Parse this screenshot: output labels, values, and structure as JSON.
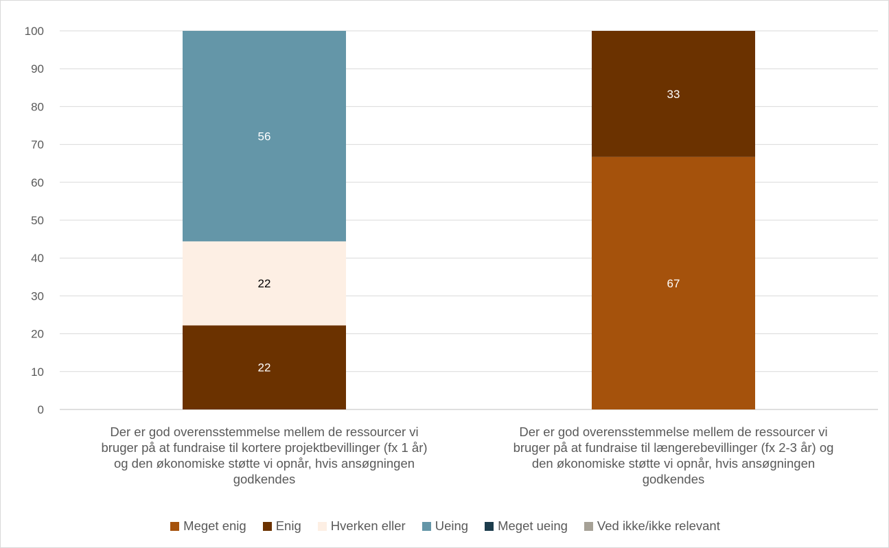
{
  "chart_data": {
    "type": "bar",
    "stacked": true,
    "categories": [
      "Der er god overensstemmelse mellem de ressourcer vi bruger på at fundraise til kortere projektbevillinger (fx 1 år) og den økonomiske støtte vi opnår, hvis ansøgningen godkendes",
      "Der er god overensstemmelse mellem de ressourcer vi bruger på at fundraise til længerebevillinger (fx 2-3 år) og den økonomiske støtte vi opnår, hvis ansøgningen godkendes"
    ],
    "category_lines": [
      [
        "Der er god overensstemmelse mellem de ressourcer vi",
        "bruger på at fundraise til kortere projektbevillinger (fx 1 år)",
        "og den økonomiske støtte vi opnår, hvis ansøgningen",
        "godkendes"
      ],
      [
        "Der er god overensstemmelse mellem de ressourcer vi",
        "bruger på at fundraise til længerebevillinger (fx 2-3 år) og",
        "den økonomiske støtte vi opnår, hvis ansøgningen",
        "godkendes"
      ]
    ],
    "series": [
      {
        "name": "Meget enig",
        "color": "#a5520c",
        "label_color": "#ffffff",
        "values": [
          0,
          66.7
        ],
        "labels": [
          "",
          "67"
        ]
      },
      {
        "name": "Enig",
        "color": "#6b3200",
        "label_color": "#ffffff",
        "values": [
          22.2,
          33.3
        ],
        "labels": [
          "22",
          "33"
        ]
      },
      {
        "name": "Hverken eller",
        "color": "#fdefe4",
        "label_color": "#000000",
        "values": [
          22.2,
          0
        ],
        "labels": [
          "22",
          ""
        ]
      },
      {
        "name": "Ueing",
        "color": "#6496a8",
        "label_color": "#ffffff",
        "values": [
          55.6,
          0
        ],
        "labels": [
          "56",
          ""
        ]
      },
      {
        "name": "Meget ueing",
        "color": "#1c3c4c",
        "label_color": "#ffffff",
        "values": [
          0,
          0
        ],
        "labels": [
          "",
          ""
        ]
      },
      {
        "name": "Ved ikke/ikke relevant",
        "color": "#a6a196",
        "label_color": "#ffffff",
        "values": [
          0,
          0
        ],
        "labels": [
          "",
          ""
        ]
      }
    ],
    "ylim": [
      0,
      100
    ],
    "yticks": [
      "0",
      "10",
      "20",
      "30",
      "40",
      "50",
      "60",
      "70",
      "80",
      "90",
      "100"
    ],
    "grid": true,
    "legend_position": "bottom",
    "title": "",
    "xlabel": "",
    "ylabel": ""
  }
}
